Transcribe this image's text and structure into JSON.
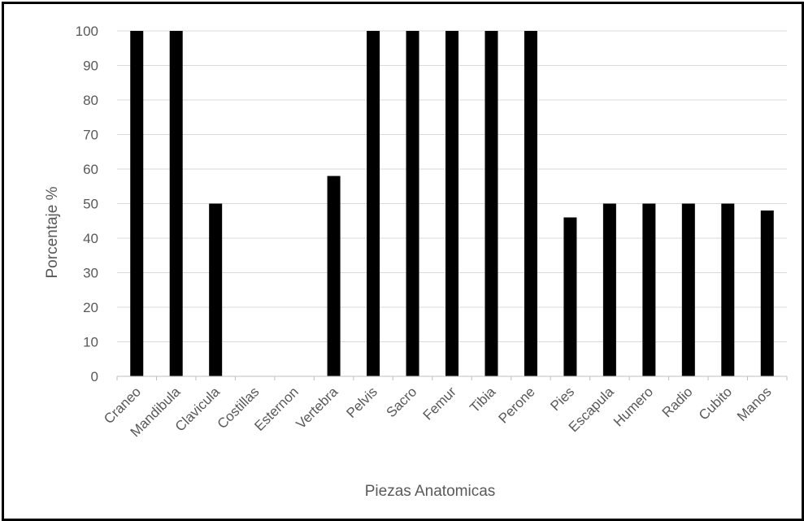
{
  "chart_data": {
    "type": "bar",
    "categories": [
      "Craneo",
      "Mandibula",
      "Clavicula",
      "Costillas",
      "Esternon",
      "Vertebra",
      "Pelvis",
      "Sacro",
      "Femur",
      "Tibia",
      "Perone",
      "Pies",
      "Escapula",
      "Humero",
      "Radio",
      "Cubito",
      "Manos"
    ],
    "values": [
      100,
      100,
      50,
      0,
      0,
      58,
      100,
      100,
      100,
      100,
      100,
      46,
      50,
      50,
      50,
      50,
      48
    ],
    "xlabel": "Piezas Anatomicas",
    "ylabel": "Porcentaje %",
    "ylim": [
      0,
      100
    ],
    "yticks": [
      0,
      10,
      20,
      30,
      40,
      50,
      60,
      70,
      80,
      90,
      100
    ],
    "grid": true,
    "legend": "none",
    "bar_color": "#000000",
    "grid_color": "#d9d9d9",
    "axis_color": "#bfbfbf",
    "text_color": "#595959"
  }
}
